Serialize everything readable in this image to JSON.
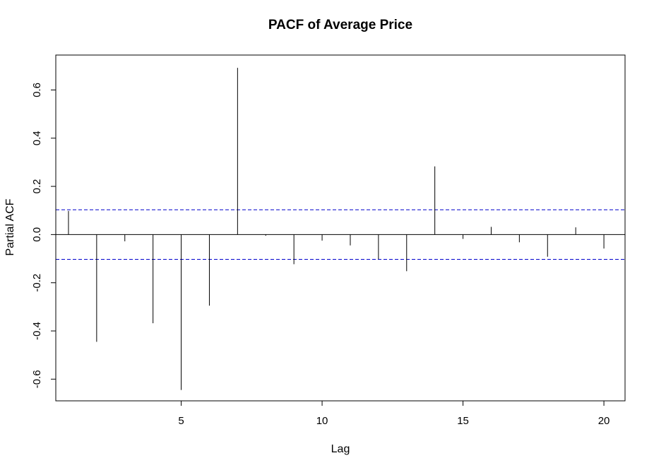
{
  "chart_data": {
    "type": "bar",
    "title": "PACF of Average Price",
    "xlabel": "Lag",
    "ylabel": "Partial ACF",
    "x": [
      1,
      2,
      3,
      4,
      5,
      6,
      7,
      8,
      9,
      10,
      11,
      12,
      13,
      14,
      15,
      16,
      17,
      18,
      19,
      20
    ],
    "values": [
      0.098,
      -0.445,
      -0.028,
      -0.368,
      -0.645,
      -0.295,
      0.692,
      -0.005,
      -0.123,
      -0.025,
      -0.045,
      -0.102,
      -0.152,
      0.283,
      -0.018,
      0.032,
      -0.032,
      -0.092,
      0.03,
      -0.058
    ],
    "confidence_bound": 0.103,
    "xlim": [
      0.55,
      20.75
    ],
    "ylim": [
      -0.69,
      0.745
    ],
    "x_ticks": [
      5,
      10,
      15,
      20
    ],
    "x_tick_labels": [
      "5",
      "10",
      "15",
      "20"
    ],
    "y_ticks": [
      -0.6,
      -0.4,
      -0.2,
      0.0,
      0.2,
      0.4,
      0.6
    ],
    "y_tick_labels": [
      "-0.6",
      "-0.4",
      "-0.2",
      "0.0",
      "0.2",
      "0.4",
      "0.6"
    ],
    "grid": false,
    "colors": {
      "spike": "#000000",
      "zero_line": "#000000",
      "confidence": "#0000cc",
      "frame": "#000000"
    }
  }
}
